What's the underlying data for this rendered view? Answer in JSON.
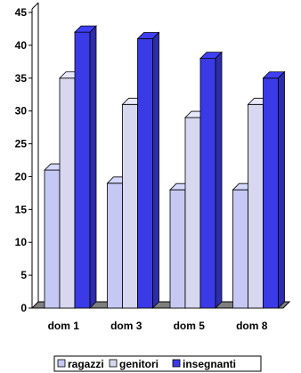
{
  "chart_data": {
    "type": "bar",
    "title": "",
    "xlabel": "",
    "ylabel": "",
    "categories": [
      "dom 1",
      "dom 3",
      "dom 5",
      "dom 8"
    ],
    "series": [
      {
        "name": "ragazzi",
        "values": [
          21,
          19,
          18,
          18
        ],
        "color": "#c6c8f4"
      },
      {
        "name": "genitori",
        "values": [
          35,
          31,
          29,
          31
        ],
        "color": "#d7d8ef"
      },
      {
        "name": "insegnanti",
        "values": [
          42,
          41,
          38,
          35
        ],
        "color": "#3a3ae6"
      }
    ],
    "ylim": [
      0,
      45
    ],
    "yticks": [
      0,
      5,
      10,
      15,
      20,
      25,
      30,
      35,
      40,
      45
    ],
    "grid": false,
    "legend_position": "bottom",
    "style": "3d-bar"
  }
}
